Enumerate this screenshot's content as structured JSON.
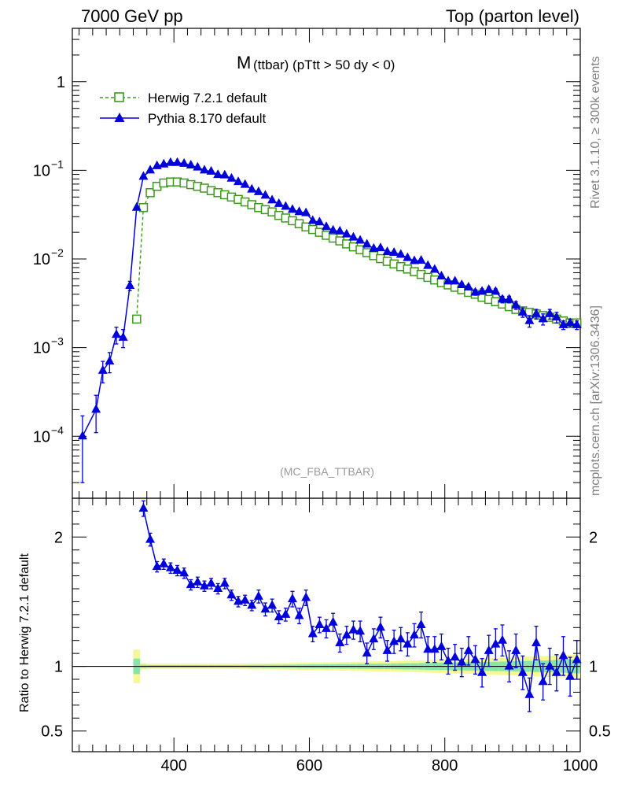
{
  "header": {
    "left": "7000 GeV pp",
    "right": "Top (parton level)"
  },
  "side_labels": {
    "rivet": "Rivet 3.1.10, ≥ 300k events",
    "mcplots": "mcplots.cern.ch [arXiv:1306.3436]"
  },
  "watermark": "(MC_FBA_TTBAR)",
  "colors": {
    "herwig": "#3c9a1b",
    "pythia": "#0000dd",
    "band_inner": "#86e6a8",
    "band_outer": "#f6f894"
  },
  "chart_data": [
    {
      "type": "line",
      "title_main": "M",
      "title_sub": "(ttbar) (pTtt > 50 dy < 0)",
      "xlabel": "",
      "ylabel": "",
      "yscale": "log",
      "xlim": [
        250,
        1000
      ],
      "ylim": [
        2e-05,
        4
      ],
      "y_ticks": [
        {
          "value": 0.0001,
          "base": "10",
          "exp": "−4"
        },
        {
          "value": 0.001,
          "base": "10",
          "exp": "−3"
        },
        {
          "value": 0.01,
          "base": "10",
          "exp": "−2"
        },
        {
          "value": 0.1,
          "base": "10",
          "exp": "−1"
        },
        {
          "value": 1,
          "base": "1",
          "exp": ""
        }
      ],
      "legend": [
        {
          "name": "Herwig 7.2.1 default",
          "marker": "open-square",
          "style": "dashed"
        },
        {
          "name": "Pythia 8.170 default",
          "marker": "filled-triangle",
          "style": "solid"
        }
      ],
      "series": [
        {
          "name": "Herwig 7.2.1 default",
          "x": [
            345,
            355,
            365,
            375,
            385,
            395,
            405,
            415,
            425,
            435,
            445,
            455,
            465,
            475,
            485,
            495,
            505,
            515,
            525,
            535,
            545,
            555,
            565,
            575,
            585,
            595,
            605,
            615,
            625,
            635,
            645,
            655,
            665,
            675,
            685,
            695,
            705,
            715,
            725,
            735,
            745,
            755,
            765,
            775,
            785,
            795,
            805,
            815,
            825,
            835,
            845,
            855,
            865,
            875,
            885,
            895,
            905,
            915,
            925,
            935,
            945,
            955,
            965,
            975,
            985,
            995
          ],
          "y": [
            0.0021,
            0.038,
            0.056,
            0.066,
            0.072,
            0.074,
            0.074,
            0.072,
            0.069,
            0.066,
            0.063,
            0.059,
            0.056,
            0.053,
            0.05,
            0.047,
            0.044,
            0.041,
            0.038,
            0.036,
            0.034,
            0.031,
            0.029,
            0.027,
            0.025,
            0.023,
            0.0215,
            0.02,
            0.0185,
            0.0172,
            0.016,
            0.0148,
            0.0137,
            0.0127,
            0.0118,
            0.0109,
            0.0101,
            0.0094,
            0.0088,
            0.0082,
            0.0077,
            0.0072,
            0.0067,
            0.0062,
            0.0058,
            0.0054,
            0.0051,
            0.0048,
            0.0045,
            0.0042,
            0.004,
            0.0037,
            0.0035,
            0.0033,
            0.0031,
            0.0029,
            0.0027,
            0.0026,
            0.0025,
            0.0024,
            0.0023,
            0.0022,
            0.0021,
            0.002,
            0.0019,
            0.0019
          ]
        },
        {
          "name": "Pythia 8.170 default",
          "x": [
            265,
            285,
            295,
            305,
            315,
            325,
            335,
            345,
            355,
            365,
            375,
            385,
            395,
            405,
            415,
            425,
            435,
            445,
            455,
            465,
            475,
            485,
            495,
            505,
            515,
            525,
            535,
            545,
            555,
            565,
            575,
            585,
            595,
            605,
            615,
            625,
            635,
            645,
            655,
            665,
            675,
            685,
            695,
            705,
            715,
            725,
            735,
            745,
            755,
            765,
            775,
            785,
            795,
            805,
            815,
            825,
            835,
            845,
            855,
            865,
            875,
            885,
            895,
            905,
            915,
            925,
            935,
            945,
            955,
            965,
            975,
            985,
            995
          ],
          "y": [
            0.0001,
            0.0002,
            0.00055,
            0.0007,
            0.0014,
            0.0013,
            0.005,
            0.038,
            0.085,
            0.1,
            0.112,
            0.117,
            0.122,
            0.122,
            0.119,
            0.114,
            0.108,
            0.1,
            0.097,
            0.089,
            0.088,
            0.081,
            0.074,
            0.069,
            0.061,
            0.057,
            0.052,
            0.046,
            0.042,
            0.039,
            0.036,
            0.034,
            0.033,
            0.027,
            0.026,
            0.023,
            0.021,
            0.0205,
            0.019,
            0.0175,
            0.0162,
            0.0146,
            0.0131,
            0.0133,
            0.012,
            0.0118,
            0.0112,
            0.0103,
            0.0095,
            0.0096,
            0.0084,
            0.0076,
            0.0064,
            0.0056,
            0.0056,
            0.0051,
            0.0048,
            0.0042,
            0.0043,
            0.0045,
            0.0043,
            0.0035,
            0.0035,
            0.003,
            0.0025,
            0.002,
            0.0024,
            0.0021,
            0.0024,
            0.0022,
            0.0018,
            0.0019,
            0.0018
          ],
          "yerr": [
            7e-05,
            9e-05,
            0.00015,
            0.00018,
            0.0003,
            0.0003,
            0.0006,
            0.0015,
            0.0025,
            0.0025,
            0.0025,
            0.0025,
            0.0025,
            0.0025,
            0.0025,
            0.0025,
            0.0025,
            0.0022,
            0.0022,
            0.002,
            0.002,
            0.0018,
            0.0017,
            0.0016,
            0.0014,
            0.0013,
            0.0012,
            0.0011,
            0.001,
            0.001,
            0.0009,
            0.0009,
            0.0009,
            0.0008,
            0.0008,
            0.0007,
            0.0007,
            0.0007,
            0.0006,
            0.0006,
            0.0006,
            0.0005,
            0.0005,
            0.0005,
            0.0005,
            0.0005,
            0.0005,
            0.0004,
            0.0004,
            0.0004,
            0.0004,
            0.0004,
            0.0003,
            0.0003,
            0.0003,
            0.0003,
            0.0003,
            0.0003,
            0.0003,
            0.0003,
            0.0003,
            0.0003,
            0.0003,
            0.0003,
            0.0003,
            0.0003,
            0.0003,
            0.0003,
            0.0003,
            0.0003,
            0.0002,
            0.0002,
            0.0002
          ]
        }
      ]
    },
    {
      "type": "line",
      "ylabel": "Ratio to Herwig 7.2.1 default",
      "xlabel": "",
      "xlim": [
        250,
        1000
      ],
      "ylim": [
        0.34,
        2.3
      ],
      "x_ticks": [
        400,
        600,
        800,
        1000
      ],
      "y_ticks": [
        0.5,
        1,
        2
      ],
      "y_tick_labels": [
        "0.5",
        "1",
        "2"
      ],
      "reference_line": 1,
      "band": {
        "x": [
          345,
          355,
          365,
          375,
          385,
          395,
          405,
          415,
          425,
          435,
          445,
          455,
          465,
          475,
          485,
          495,
          505,
          515,
          525,
          535,
          545,
          555,
          565,
          575,
          585,
          595,
          605,
          615,
          625,
          635,
          645,
          655,
          665,
          675,
          685,
          695,
          705,
          715,
          725,
          735,
          745,
          755,
          765,
          775,
          785,
          795,
          805,
          815,
          825,
          835,
          845,
          855,
          865,
          875,
          885,
          895,
          905,
          915,
          925,
          935,
          945,
          955,
          965,
          975,
          985,
          995
        ],
        "inner": [
          0.06,
          0.012,
          0.01,
          0.01,
          0.01,
          0.01,
          0.01,
          0.01,
          0.01,
          0.01,
          0.01,
          0.01,
          0.01,
          0.01,
          0.01,
          0.01,
          0.01,
          0.011,
          0.011,
          0.012,
          0.012,
          0.012,
          0.013,
          0.013,
          0.014,
          0.014,
          0.015,
          0.015,
          0.016,
          0.016,
          0.017,
          0.017,
          0.018,
          0.019,
          0.019,
          0.02,
          0.021,
          0.021,
          0.022,
          0.023,
          0.024,
          0.024,
          0.025,
          0.026,
          0.027,
          0.028,
          0.029,
          0.03,
          0.031,
          0.032,
          0.033,
          0.034,
          0.035,
          0.036,
          0.037,
          0.038,
          0.04,
          0.041,
          0.042,
          0.044,
          0.045,
          0.046,
          0.048,
          0.05,
          0.052,
          0.054
        ],
        "outer": [
          0.13,
          0.025,
          0.02,
          0.02,
          0.02,
          0.02,
          0.02,
          0.02,
          0.02,
          0.02,
          0.02,
          0.02,
          0.02,
          0.02,
          0.021,
          0.021,
          0.022,
          0.022,
          0.023,
          0.023,
          0.024,
          0.025,
          0.025,
          0.026,
          0.027,
          0.028,
          0.029,
          0.03,
          0.031,
          0.032,
          0.033,
          0.034,
          0.035,
          0.036,
          0.037,
          0.038,
          0.039,
          0.04,
          0.041,
          0.043,
          0.044,
          0.045,
          0.047,
          0.048,
          0.05,
          0.051,
          0.053,
          0.054,
          0.056,
          0.058,
          0.06,
          0.061,
          0.063,
          0.065,
          0.067,
          0.069,
          0.071,
          0.073,
          0.075,
          0.077,
          0.08,
          0.082,
          0.085,
          0.087,
          0.09,
          0.092
        ]
      },
      "series": [
        {
          "name": "Pythia 8.170 default",
          "x": [
            355,
            365,
            375,
            385,
            395,
            405,
            415,
            425,
            435,
            445,
            455,
            465,
            475,
            485,
            495,
            505,
            515,
            525,
            535,
            545,
            555,
            565,
            575,
            585,
            595,
            605,
            615,
            625,
            635,
            645,
            655,
            665,
            675,
            685,
            695,
            705,
            715,
            725,
            735,
            745,
            755,
            765,
            775,
            785,
            795,
            805,
            815,
            825,
            835,
            845,
            855,
            865,
            875,
            885,
            895,
            905,
            915,
            925,
            935,
            945,
            955,
            965,
            975,
            985,
            995
          ],
          "y": [
            2.22,
            1.98,
            1.77,
            1.79,
            1.76,
            1.74,
            1.72,
            1.63,
            1.65,
            1.62,
            1.64,
            1.6,
            1.64,
            1.55,
            1.5,
            1.51,
            1.47,
            1.54,
            1.44,
            1.47,
            1.38,
            1.4,
            1.52,
            1.39,
            1.53,
            1.25,
            1.32,
            1.29,
            1.34,
            1.18,
            1.24,
            1.28,
            1.27,
            1.1,
            1.21,
            1.3,
            1.12,
            1.19,
            1.21,
            1.17,
            1.24,
            1.32,
            1.13,
            1.13,
            1.15,
            1.04,
            1.07,
            1.03,
            1.12,
            1.05,
            0.95,
            1.12,
            1.17,
            1.2,
            1.0,
            1.12,
            0.95,
            0.78,
            1.18,
            0.88,
            1.0,
            0.95,
            1.08,
            0.92,
            1.05
          ],
          "yerr": [
            0.06,
            0.05,
            0.04,
            0.04,
            0.04,
            0.04,
            0.04,
            0.04,
            0.04,
            0.04,
            0.04,
            0.04,
            0.04,
            0.04,
            0.04,
            0.04,
            0.04,
            0.05,
            0.05,
            0.05,
            0.05,
            0.05,
            0.06,
            0.06,
            0.06,
            0.06,
            0.06,
            0.07,
            0.07,
            0.07,
            0.07,
            0.07,
            0.08,
            0.08,
            0.08,
            0.08,
            0.08,
            0.09,
            0.09,
            0.09,
            0.09,
            0.1,
            0.1,
            0.1,
            0.1,
            0.1,
            0.1,
            0.11,
            0.11,
            0.11,
            0.11,
            0.12,
            0.12,
            0.12,
            0.12,
            0.13,
            0.13,
            0.13,
            0.13,
            0.14,
            0.14,
            0.14,
            0.15,
            0.15,
            0.15
          ]
        }
      ]
    }
  ]
}
